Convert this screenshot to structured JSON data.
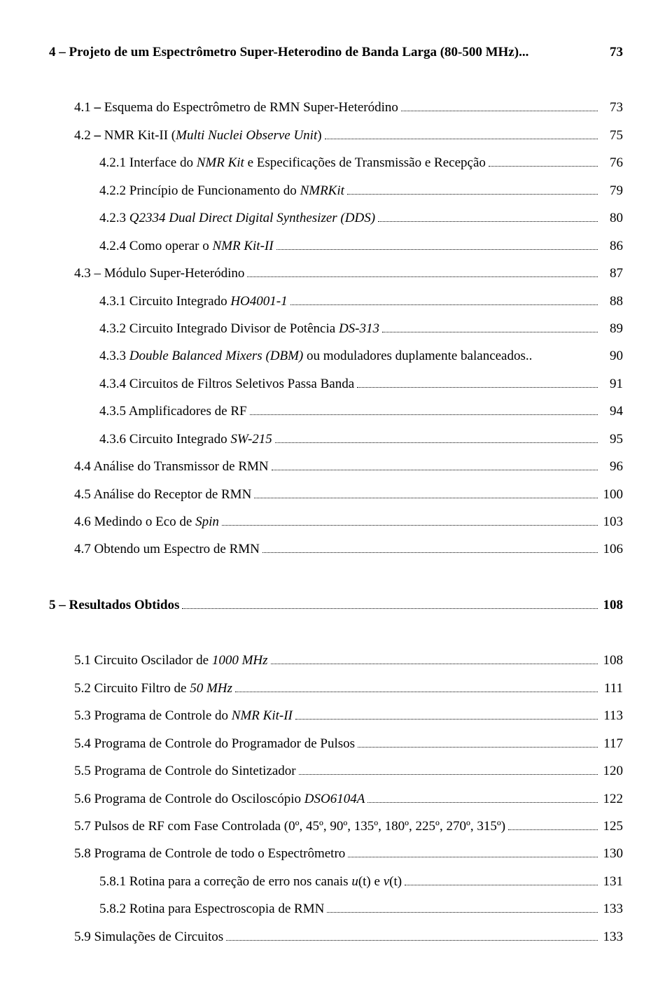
{
  "toc": [
    {
      "indent": 0,
      "bold": true,
      "parts": [
        {
          "t": "4 – Projeto de um Espectrômetro Super-Heterodino de Banda Larga (80-500 MHz)..."
        }
      ],
      "page": "73",
      "dots": false
    },
    {
      "spacer": true
    },
    {
      "indent": 1,
      "parts": [
        {
          "t": "4.1 "
        },
        {
          "t": "–",
          "b": true
        },
        {
          "t": " Esquema do Espectrômetro de RMN Super-Heteródino"
        }
      ],
      "page": "73"
    },
    {
      "indent": 1,
      "parts": [
        {
          "t": "4.2 "
        },
        {
          "t": "–",
          "b": true
        },
        {
          "t": " NMR Kit-II ("
        },
        {
          "t": "Multi Nuclei Observe Unit",
          "i": true
        },
        {
          "t": ")"
        }
      ],
      "page": "75"
    },
    {
      "indent": 2,
      "parts": [
        {
          "t": "4.2.1 Interface do "
        },
        {
          "t": "NMR Kit",
          "i": true
        },
        {
          "t": " e Especificações de Transmissão e Recepção"
        }
      ],
      "page": "76"
    },
    {
      "indent": 2,
      "parts": [
        {
          "t": "4.2.2 Princípio de Funcionamento do "
        },
        {
          "t": "NMRKit",
          "i": true
        }
      ],
      "page": "79"
    },
    {
      "indent": 2,
      "parts": [
        {
          "t": "4.2.3 "
        },
        {
          "t": "Q2334 Dual Direct Digital Synthesizer (DDS)",
          "i": true
        }
      ],
      "page": "80"
    },
    {
      "indent": 2,
      "parts": [
        {
          "t": "4.2.4 Como operar o "
        },
        {
          "t": "NMR Kit-II",
          "i": true
        }
      ],
      "page": "86"
    },
    {
      "indent": 1,
      "parts": [
        {
          "t": "4.3 – Módulo Super-Heteródino"
        }
      ],
      "page": "87"
    },
    {
      "indent": 2,
      "parts": [
        {
          "t": "4.3.1 Circuito Integrado "
        },
        {
          "t": "HO4001-1",
          "i": true
        }
      ],
      "page": "88"
    },
    {
      "indent": 2,
      "parts": [
        {
          "t": "4.3.2 Circuito Integrado Divisor de Potência "
        },
        {
          "t": "DS-313",
          "i": true
        }
      ],
      "page": "89"
    },
    {
      "indent": 2,
      "parts": [
        {
          "t": "4.3.3 "
        },
        {
          "t": "Double Balanced Mixers (DBM)",
          "i": true
        },
        {
          "t": " ou moduladores duplamente balanceados.."
        }
      ],
      "page": "90",
      "dots": false
    },
    {
      "indent": 2,
      "parts": [
        {
          "t": "4.3.4 Circuitos de Filtros Seletivos Passa Banda"
        }
      ],
      "page": "91"
    },
    {
      "indent": 2,
      "parts": [
        {
          "t": "4.3.5 Amplificadores de RF"
        }
      ],
      "page": "94"
    },
    {
      "indent": 2,
      "parts": [
        {
          "t": "4.3.6 Circuito Integrado "
        },
        {
          "t": "SW-215",
          "i": true
        }
      ],
      "page": "95"
    },
    {
      "indent": 1,
      "parts": [
        {
          "t": "4.4 Análise do Transmissor de RMN"
        }
      ],
      "page": "96"
    },
    {
      "indent": 1,
      "parts": [
        {
          "t": "4.5 Análise do Receptor de RMN"
        }
      ],
      "page": "100"
    },
    {
      "indent": 1,
      "parts": [
        {
          "t": "4.6 Medindo o Eco de "
        },
        {
          "t": "Spin",
          "i": true
        }
      ],
      "page": "103"
    },
    {
      "indent": 1,
      "parts": [
        {
          "t": "4.7 Obtendo um Espectro de RMN"
        }
      ],
      "page": "106"
    },
    {
      "spacer": true
    },
    {
      "indent": 0,
      "bold": true,
      "parts": [
        {
          "t": "5 – Resultados Obtidos"
        }
      ],
      "page": "108"
    },
    {
      "spacer": true
    },
    {
      "indent": 1,
      "parts": [
        {
          "t": "5.1 Circuito Oscilador de "
        },
        {
          "t": "1000 MHz",
          "i": true
        }
      ],
      "page": "108"
    },
    {
      "indent": 1,
      "parts": [
        {
          "t": "5.2 Circuito Filtro de "
        },
        {
          "t": "50 MHz",
          "i": true
        }
      ],
      "page": "111"
    },
    {
      "indent": 1,
      "parts": [
        {
          "t": "5.3 Programa de Controle do "
        },
        {
          "t": "NMR Kit-II",
          "i": true
        }
      ],
      "page": "113"
    },
    {
      "indent": 1,
      "parts": [
        {
          "t": "5.4 Programa de Controle do Programador de Pulsos"
        }
      ],
      "page": "117"
    },
    {
      "indent": 1,
      "parts": [
        {
          "t": "5.5 Programa de Controle do Sintetizador "
        }
      ],
      "page": "120"
    },
    {
      "indent": 1,
      "parts": [
        {
          "t": "5.6 Programa de Controle do Osciloscópio "
        },
        {
          "t": "DSO6104A",
          "i": true
        }
      ],
      "page": "122"
    },
    {
      "indent": 1,
      "parts": [
        {
          "t": "5.7 Pulsos de RF com Fase Controlada (0º, 45º, 90º, 135º, 180º, 225º, 270º, 315º)"
        }
      ],
      "page": "125"
    },
    {
      "indent": 1,
      "parts": [
        {
          "t": "5.8 Programa de Controle de todo o Espectrômetro"
        }
      ],
      "page": "130"
    },
    {
      "indent": 2,
      "parts": [
        {
          "t": "5.8.1 Rotina para a correção de erro nos canais "
        },
        {
          "t": "u",
          "i": true
        },
        {
          "t": "(t) e "
        },
        {
          "t": "v",
          "i": true
        },
        {
          "t": "(t)"
        }
      ],
      "page": "131"
    },
    {
      "indent": 2,
      "parts": [
        {
          "t": "5.8.2 Rotina para Espectroscopia de RMN"
        }
      ],
      "page": "133"
    },
    {
      "indent": 1,
      "parts": [
        {
          "t": "5.9 Simulações de Circuitos"
        }
      ],
      "page": "133"
    }
  ]
}
